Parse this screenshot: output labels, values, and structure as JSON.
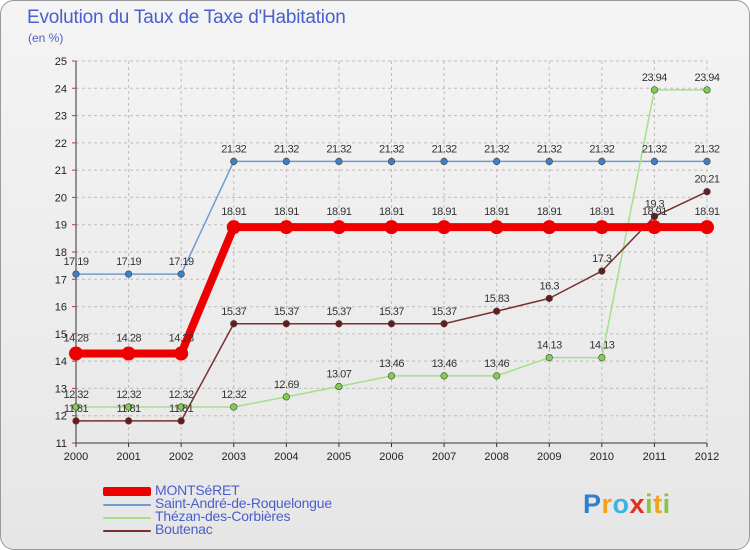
{
  "title": "Evolution du Taux de Taxe d'Habitation",
  "subtitle": "(en %)",
  "brand": {
    "letters": [
      {
        "ch": "P",
        "color": "#2f7fd0"
      },
      {
        "ch": "r",
        "color": "#f2a21a"
      },
      {
        "ch": "o",
        "color": "#3cb4e0"
      },
      {
        "ch": "x",
        "color": "#e0301e"
      },
      {
        "ch": "i",
        "color": "#8ac43f"
      },
      {
        "ch": "t",
        "color": "#f2a21a"
      },
      {
        "ch": "i",
        "color": "#8ac43f"
      }
    ]
  },
  "chart_data": {
    "type": "line",
    "categories": [
      "2000",
      "2001",
      "2002",
      "2003",
      "2004",
      "2005",
      "2006",
      "2007",
      "2008",
      "2009",
      "2010",
      "2011",
      "2012"
    ],
    "ylim": [
      11,
      25
    ],
    "yticks": [
      11,
      12,
      13,
      14,
      15,
      16,
      17,
      18,
      19,
      20,
      21,
      22,
      23,
      24,
      25
    ],
    "grid": true,
    "legend_position": "bottom-left",
    "series": [
      {
        "name": "Saint-André-de-Roquelongue",
        "color": "#6f9ccf",
        "point_color": "#3f7fc6",
        "labels": [
          "17.19",
          "17.19",
          "17.19",
          "21.32",
          "21.32",
          "21.32",
          "21.32",
          "21.32",
          "21.32",
          "21.32",
          "21.32",
          "21.32",
          "21.32"
        ],
        "values": [
          17.19,
          17.19,
          17.19,
          21.32,
          21.32,
          21.32,
          21.32,
          21.32,
          21.32,
          21.32,
          21.32,
          21.32,
          21.32
        ]
      },
      {
        "name": "Thézan-des-Corbières",
        "color": "#a4e08a",
        "point_color": "#7ed04a",
        "labels": [
          "12.32",
          "12.32",
          "12.32",
          "12.32",
          "12.69",
          "13.07",
          "13.46",
          "13.46",
          "13.46",
          "14.13",
          "14.13",
          "23.94",
          "23.94"
        ],
        "values": [
          12.32,
          12.32,
          12.32,
          12.32,
          12.69,
          13.07,
          13.46,
          13.46,
          13.46,
          14.13,
          14.13,
          23.94,
          23.94
        ]
      },
      {
        "name": "Boutenac",
        "color": "#7a3030",
        "point_color": "#6a1a1a",
        "labels": [
          "11.81",
          "11.81",
          "11.81",
          "15.37",
          "15.37",
          "15.37",
          "15.37",
          "15.37",
          "15.83",
          "16.3",
          "17.3",
          "19.3",
          "20.21"
        ],
        "values": [
          11.81,
          11.81,
          11.81,
          15.37,
          15.37,
          15.37,
          15.37,
          15.37,
          15.83,
          16.3,
          17.3,
          19.3,
          20.21
        ]
      },
      {
        "name": "MONTSéRET",
        "color": "#ee0000",
        "point_color": "#ee0000",
        "labels": [
          "14.28",
          "14.28",
          "14.28",
          "18.91",
          "18.91",
          "18.91",
          "18.91",
          "18.91",
          "18.91",
          "18.91",
          "18.91",
          "18.91",
          "18.91"
        ],
        "values": [
          14.28,
          14.28,
          14.28,
          18.91,
          18.91,
          18.91,
          18.91,
          18.91,
          18.91,
          18.91,
          18.91,
          18.91,
          18.91
        ]
      }
    ]
  },
  "legend": [
    {
      "label": "MONTSéRET",
      "color": "#ee0000"
    },
    {
      "label": "Saint-André-de-Roquelongue",
      "color": "#6f9ccf"
    },
    {
      "label": "Thézan-des-Corbières",
      "color": "#a4e08a"
    },
    {
      "label": "Boutenac",
      "color": "#7a3030"
    }
  ]
}
